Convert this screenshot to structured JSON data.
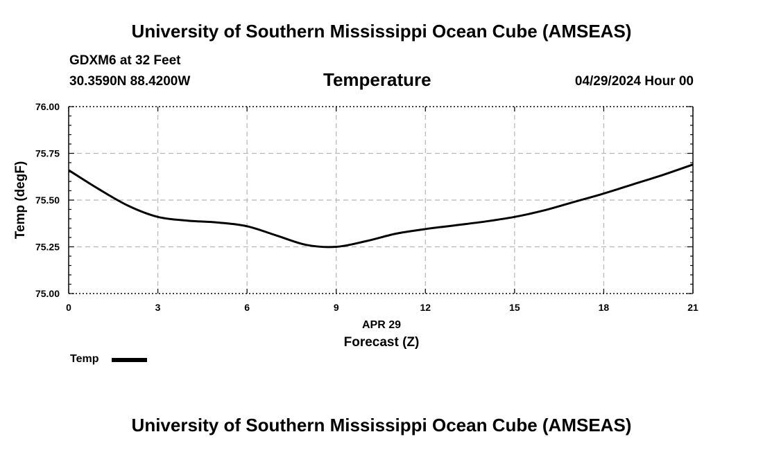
{
  "header": {
    "main_title": "University of Southern Mississippi Ocean Cube (AMSEAS)",
    "station": "GDXM6 at 32 Feet",
    "coordinates": "30.3590N  88.4200W",
    "chart_title": "Temperature",
    "datetime": "04/29/2024 Hour 00"
  },
  "legend": {
    "label": "Temp"
  },
  "footer": {
    "main_title": "University of Southern Mississippi Ocean Cube (AMSEAS)"
  },
  "chart_data": {
    "type": "line",
    "title": "Temperature",
    "xlabel": "Forecast (Z)",
    "xsublabel": "APR 29",
    "ylabel": "Temp (degF)",
    "xlim": [
      0,
      21
    ],
    "ylim": [
      75.0,
      76.0
    ],
    "x_ticks": [
      0,
      3,
      6,
      9,
      12,
      15,
      18,
      21
    ],
    "y_ticks": [
      75.0,
      75.25,
      75.5,
      75.75,
      76.0
    ],
    "y_tick_labels": [
      "75.00",
      "75.25",
      "75.50",
      "75.75",
      "76.00"
    ],
    "grid": true,
    "line_color": "#000000",
    "series": [
      {
        "name": "Temp",
        "x": [
          0,
          1,
          2,
          3,
          4,
          5,
          6,
          7,
          8,
          9,
          10,
          11,
          12,
          13,
          14,
          15,
          16,
          17,
          18,
          19,
          20,
          21
        ],
        "values": [
          75.66,
          75.56,
          75.47,
          75.41,
          75.39,
          75.38,
          75.36,
          75.31,
          75.26,
          75.25,
          75.28,
          75.32,
          75.345,
          75.365,
          75.385,
          75.41,
          75.445,
          75.49,
          75.535,
          75.585,
          75.635,
          75.69
        ]
      }
    ]
  }
}
